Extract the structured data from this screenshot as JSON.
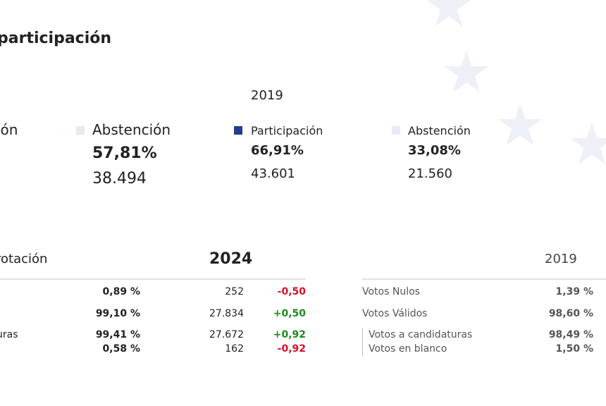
{
  "section_title": "participación",
  "participation": {
    "year_2019_label": "2019",
    "cut_label_2024": "ión",
    "abstention_2024": {
      "label": "Abstención",
      "percent": "57,81%",
      "count": "38.494"
    },
    "participation_2019": {
      "label": "Participación",
      "percent": "66,91%",
      "count": "43.601"
    },
    "abstention_2019": {
      "label": "Abstención",
      "percent": "33,08%",
      "count": "21.560"
    },
    "colors": {
      "participation": "#233c8c",
      "abstention": "#e6eaf3"
    }
  },
  "votes": {
    "cut_title": "rotación",
    "year_2024": "2024",
    "year_2019": "2019",
    "rows_2024": [
      {
        "label": "",
        "percent": "0,89 %",
        "count": "252",
        "diff": "-0,50",
        "sign": "neg"
      },
      {
        "label": "",
        "percent": "99,10 %",
        "count": "27.834",
        "diff": "+0,50",
        "sign": "pos"
      },
      {
        "label": "uras",
        "percent": "99,41 %",
        "count": "27.672",
        "diff": "+0,92",
        "sign": "pos"
      },
      {
        "label": "",
        "percent": "0,58 %",
        "count": "162",
        "diff": "-0,92",
        "sign": "neg"
      }
    ],
    "rows_2019": [
      {
        "label": "Votos Nulos",
        "percent": "1,39 %"
      },
      {
        "label": "Votos Válidos",
        "percent": "98,60 %"
      },
      {
        "label": "Votos a candidaturas",
        "percent": "98,49 %"
      },
      {
        "label": "Votos en blanco",
        "percent": "1,50 %"
      }
    ]
  }
}
